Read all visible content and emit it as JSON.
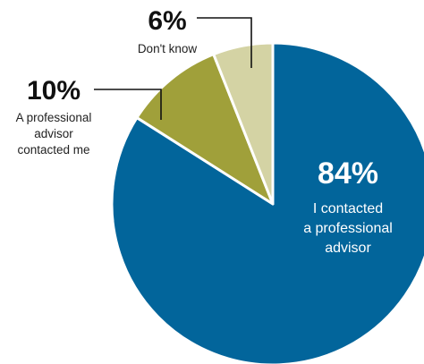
{
  "chart_data": {
    "type": "pie",
    "title": "",
    "slices": [
      {
        "label_lines": [
          "I contacted",
          "a professional",
          "advisor"
        ],
        "value": 84,
        "display": "84%",
        "color": "#02659b"
      },
      {
        "label_lines": [
          "A professional",
          "advisor",
          "contacted me"
        ],
        "value": 10,
        "display": "10%",
        "color": "#a0a03a"
      },
      {
        "label_lines": [
          "Don't know"
        ],
        "value": 6,
        "display": "6%",
        "color": "#d4d3a4"
      }
    ]
  }
}
